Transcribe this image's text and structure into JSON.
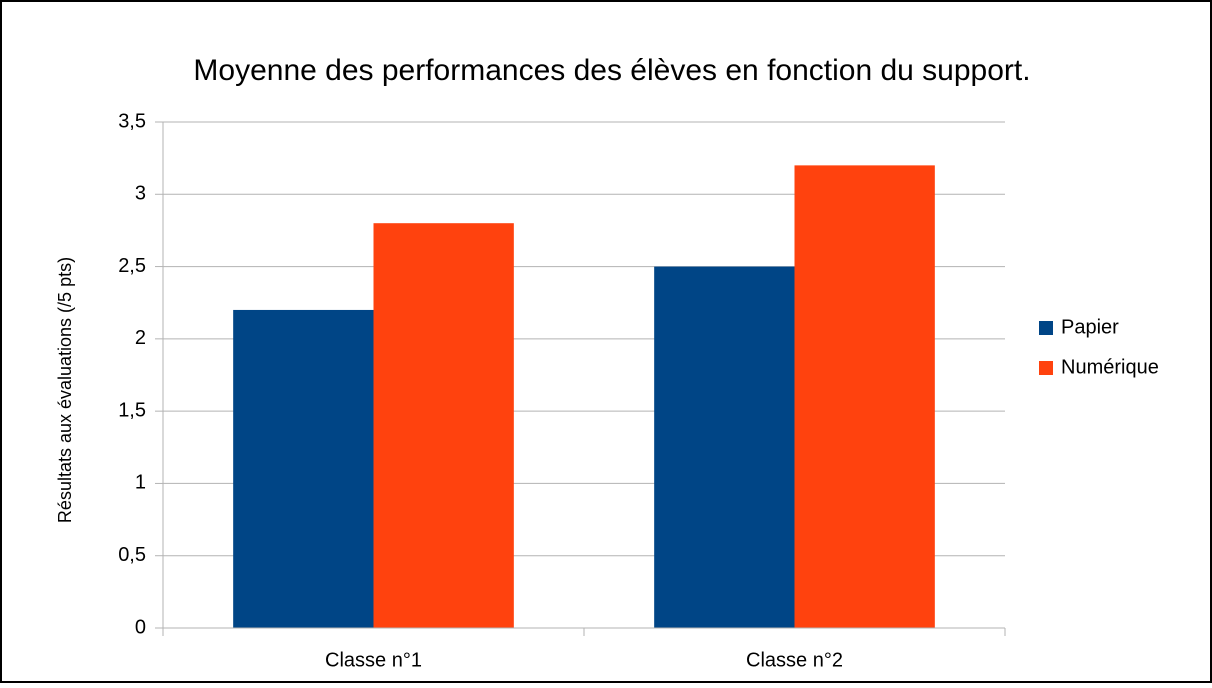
{
  "chart_data": {
    "type": "bar",
    "title": "Moyenne des performances des élèves en fonction du support.",
    "ylabel": "Résultats aux évaluations (/5 pts)",
    "categories": [
      "Classe n°1",
      "Classe n°2"
    ],
    "series": [
      {
        "name": "Papier",
        "color": "#004586",
        "values": [
          2.2,
          2.5
        ]
      },
      {
        "name": "Numérique",
        "color": "#ff420e",
        "values": [
          2.8,
          3.2
        ]
      }
    ],
    "ylim": [
      0,
      3.5
    ],
    "yticks": [
      0,
      {
        "value": 0.5,
        "label": "0,5"
      },
      1,
      {
        "value": 1.5,
        "label": "1,5"
      },
      2,
      {
        "value": 2.5,
        "label": "2,5"
      },
      3,
      {
        "value": 3.5,
        "label": "3,5"
      }
    ],
    "grid": true,
    "legend": "right"
  }
}
